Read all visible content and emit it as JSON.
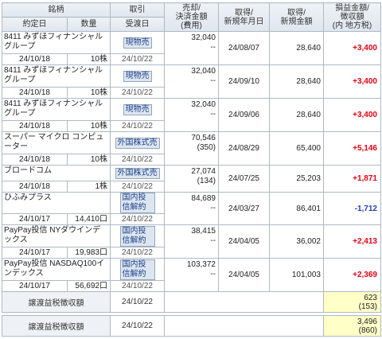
{
  "headers": {
    "meigara": "銘柄",
    "yakujobi": "約定日",
    "suryo": "数量",
    "torihiki": "取引",
    "ukewatashibi": "受渡日",
    "baikyaku1": "売却/",
    "baikyaku2": "決済金額",
    "baikyaku3": "(費用)",
    "shutoku_date1": "取得/",
    "shutoku_date2": "新規年月日",
    "shutoku_amt1": "取得/",
    "shutoku_amt2": "新規金額",
    "pl1": "損益金額/",
    "pl2": "徴収額",
    "pl3": "(内 地方税)"
  },
  "rows": [
    {
      "name": "8411 みずほフィナンシャルグループ",
      "yakujobi": "24/10/18",
      "qty": "10株",
      "torihiki": "現物売",
      "ukewatashi": "24/10/22",
      "amount": "32,040",
      "fee": "--",
      "acq_date": "24/08/07",
      "acq_amount": "28,640",
      "pl": "+3,400",
      "sign": "pos"
    },
    {
      "name": "8411 みずほフィナンシャルグループ",
      "yakujobi": "24/10/18",
      "qty": "10株",
      "torihiki": "現物売",
      "ukewatashi": "24/10/22",
      "amount": "32,040",
      "fee": "--",
      "acq_date": "24/09/10",
      "acq_amount": "28,640",
      "pl": "+3,400",
      "sign": "pos"
    },
    {
      "name": "8411 みずほフィナンシャルグループ",
      "yakujobi": "24/10/18",
      "qty": "10株",
      "torihiki": "現物売",
      "ukewatashi": "24/10/22",
      "amount": "32,040",
      "fee": "--",
      "acq_date": "24/09/06",
      "acq_amount": "28,640",
      "pl": "+3,400",
      "sign": "pos"
    },
    {
      "name": "スーパー マイクロ コンピューター",
      "yakujobi": "24/10/18",
      "qty": "10株",
      "torihiki": "外国株式売",
      "ukewatashi": "24/10/22",
      "amount": "70,546",
      "fee": "(350)",
      "acq_date": "24/08/29",
      "acq_amount": "65,400",
      "pl": "+5,146",
      "sign": "pos"
    },
    {
      "name": "ブロードコム",
      "yakujobi": "24/10/18",
      "qty": "1株",
      "torihiki": "外国株式売",
      "ukewatashi": "24/10/22",
      "amount": "27,074",
      "fee": "(134)",
      "acq_date": "24/07/25",
      "acq_amount": "25,203",
      "pl": "+1,871",
      "sign": "pos"
    },
    {
      "name": "ひふみプラス",
      "yakujobi": "24/10/17",
      "qty": "14,410口",
      "torihiki": "国内投信解約",
      "ukewatashi": "24/10/22",
      "amount": "84,689",
      "fee": "--",
      "acq_date": "24/03/27",
      "acq_amount": "86,401",
      "pl": "-1,712",
      "sign": "neg"
    },
    {
      "name": "PayPay投信 NYダウインデックス",
      "yakujobi": "24/10/17",
      "qty": "19,983口",
      "torihiki": "国内投信解約",
      "ukewatashi": "24/10/22",
      "amount": "38,415",
      "fee": "--",
      "acq_date": "24/04/05",
      "acq_amount": "36,002",
      "pl": "+2,413",
      "sign": "pos"
    },
    {
      "name": "PayPay投信 NASDAQ100インデックス",
      "yakujobi": "24/10/17",
      "qty": "56,692口",
      "torihiki": "国内投信解約",
      "ukewatashi": "24/10/22",
      "amount": "103,372",
      "fee": "--",
      "acq_date": "24/04/05",
      "acq_amount": "101,003",
      "pl": "+2,369",
      "sign": "pos"
    }
  ],
  "totals": [
    {
      "label": "譲渡益税徴収額",
      "date": "24/10/22",
      "value": "623",
      "local": "(153)"
    },
    {
      "label": "譲渡益税徴収額",
      "date": "24/10/22",
      "value": "3,496",
      "local": "(860)"
    }
  ],
  "colors": {
    "positive": "#e60012",
    "negative": "#1d3fc4",
    "highlight": "#ffffc8",
    "button": "#1c3f8c"
  }
}
